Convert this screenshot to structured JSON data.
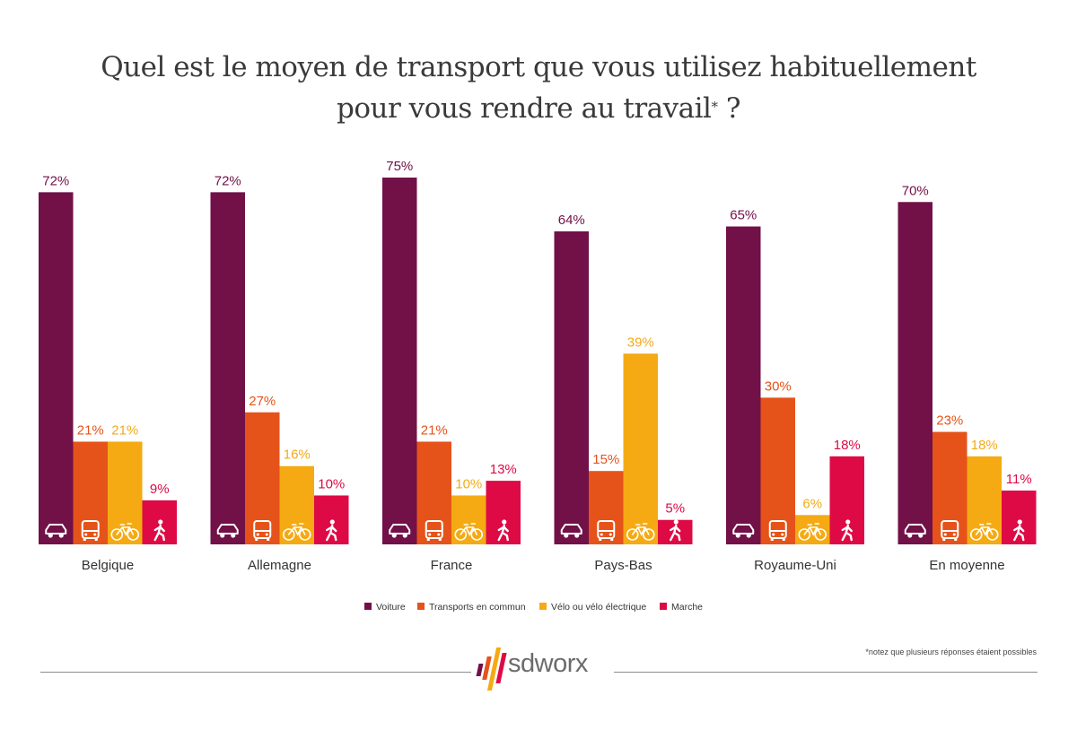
{
  "title": {
    "line1": "Quel est le moyen de transport que vous utilisez habituellement",
    "line2": "pour vous rendre au travail",
    "asterisk": "*",
    "question_mark": " ?"
  },
  "chart_data": {
    "type": "bar",
    "title": "Quel est le moyen de transport que vous utilisez habituellement pour vous rendre au travail* ?",
    "xlabel": "",
    "ylabel": "",
    "ylim": [
      0,
      75
    ],
    "grid": false,
    "legend_position": "bottom-center",
    "categories": [
      "Belgique",
      "Allemagne",
      "France",
      "Pays-Bas",
      "Royaume-Uni",
      "En moyenne"
    ],
    "series": [
      {
        "name": "Voiture",
        "color": "#721048",
        "icon": "car-icon",
        "values": [
          72,
          72,
          75,
          64,
          65,
          70
        ]
      },
      {
        "name": "Transports en commun",
        "color": "#e5531a",
        "icon": "bus-icon",
        "values": [
          21,
          27,
          21,
          15,
          30,
          23
        ]
      },
      {
        "name": "Vélo ou vélo électrique",
        "color": "#f5aa14",
        "icon": "bicycle-icon",
        "values": [
          21,
          16,
          10,
          39,
          6,
          18
        ]
      },
      {
        "name": "Marche",
        "color": "#de0a45",
        "icon": "walking-person-icon",
        "values": [
          9,
          10,
          13,
          5,
          18,
          11
        ]
      }
    ],
    "value_suffix": "%"
  },
  "footnote": "*notez que plusieurs réponses étaient possibles",
  "logo": {
    "text": "sdworx",
    "colors": [
      "#721048",
      "#e5531a",
      "#f5aa14",
      "#de0a45"
    ]
  }
}
